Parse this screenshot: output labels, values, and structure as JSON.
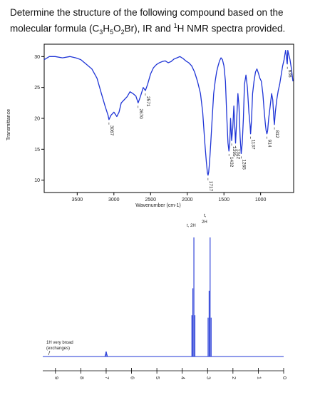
{
  "question": {
    "prefix": "Determine the structure of the following compound based on the molecular formula (C",
    "sub1": "3",
    "mid1": "H",
    "sub2": "5",
    "mid2": "O",
    "sub3": "2",
    "mid3": "Br), IR and ",
    "sup1": "1",
    "suffix": "H NMR spectra provided."
  },
  "colors": {
    "spectrum": "#1f35d6",
    "axis": "#000000",
    "text": "#222222"
  },
  "chart_data": [
    {
      "type": "line",
      "xlabel": "Wavenumber (cm-1)",
      "ylabel": "Transmittance",
      "xlim": [
        3950,
        550
      ],
      "ylim": [
        8,
        32
      ],
      "x_ticks": [
        3500,
        3000,
        2500,
        2000,
        1500,
        1000
      ],
      "y_ticks": [
        10,
        15,
        20,
        25,
        30
      ],
      "peak_labels": [
        {
          "x": 3067,
          "label": "3067"
        },
        {
          "x": 2670,
          "label": "2670"
        },
        {
          "x": 2571,
          "label": "2571"
        },
        {
          "x": 1717,
          "label": "1717"
        },
        {
          "x": 1432,
          "label": "1432"
        },
        {
          "x": 1395,
          "label": "1395"
        },
        {
          "x": 1342,
          "label": "1342"
        },
        {
          "x": 1265,
          "label": "1265"
        },
        {
          "x": 1137,
          "label": "1137"
        },
        {
          "x": 914,
          "label": "914"
        },
        {
          "x": 812,
          "label": "812"
        },
        {
          "x": 636,
          "label": "636"
        }
      ],
      "series": [
        {
          "x": [
            3950,
            3880,
            3800,
            3700,
            3600,
            3520,
            3450,
            3380,
            3300,
            3230,
            3170,
            3120,
            3080,
            3067,
            3040,
            3000,
            2960,
            2930,
            2900,
            2860,
            2820,
            2780,
            2740,
            2700,
            2670,
            2640,
            2600,
            2571,
            2540,
            2500,
            2460,
            2420,
            2380,
            2340,
            2300,
            2260,
            2220,
            2180,
            2140,
            2100,
            2060,
            2020,
            1980,
            1940,
            1900,
            1860,
            1820,
            1790,
            1760,
            1740,
            1725,
            1717,
            1708,
            1695,
            1680,
            1660,
            1640,
            1620,
            1600,
            1580,
            1560,
            1540,
            1520,
            1500,
            1480,
            1460,
            1445,
            1432,
            1420,
            1410,
            1395,
            1380,
            1365,
            1342,
            1325,
            1310,
            1295,
            1280,
            1265,
            1250,
            1235,
            1220,
            1200,
            1180,
            1160,
            1145,
            1137,
            1125,
            1110,
            1090,
            1070,
            1050,
            1030,
            1010,
            990,
            970,
            950,
            935,
            925,
            914,
            905,
            890,
            870,
            850,
            835,
            820,
            812,
            800,
            780,
            760,
            740,
            720,
            700,
            680,
            660,
            650,
            640,
            636,
            630,
            620,
            600,
            580,
            560
          ],
          "y": [
            29.5,
            30,
            30,
            29.8,
            30,
            29.8,
            29.5,
            28.8,
            28,
            26.5,
            24,
            22,
            20.5,
            19.8,
            20.5,
            21,
            20.3,
            21,
            22.5,
            23,
            23.5,
            24.3,
            24,
            23.6,
            22.5,
            23.5,
            25,
            24.5,
            25.5,
            27.2,
            28.2,
            28.7,
            29,
            29.2,
            29.3,
            29,
            29.2,
            29.6,
            29.8,
            30,
            29.7,
            29.3,
            29,
            28.5,
            27.5,
            26,
            24,
            21,
            16,
            13,
            11.2,
            10.8,
            11.3,
            13,
            16,
            20,
            24,
            26,
            27.5,
            28.5,
            29.3,
            29.8,
            29.5,
            28.5,
            26,
            20,
            16,
            14.7,
            16,
            20,
            16.4,
            18.5,
            22,
            16,
            20,
            24,
            22,
            17,
            14.3,
            16,
            20,
            25.5,
            27,
            25,
            21,
            19,
            17.5,
            19.5,
            24,
            26,
            27.5,
            28,
            27.3,
            26.5,
            26,
            24,
            21,
            19,
            18,
            17.5,
            18,
            20,
            22,
            24,
            23,
            20,
            19,
            21,
            23,
            24.5,
            25.5,
            27,
            28.5,
            29.5,
            31,
            30.2,
            29,
            28.8,
            31,
            30.5,
            29.5,
            28,
            26
          ]
        }
      ]
    },
    {
      "type": "line",
      "xlim": [
        9.5,
        0
      ],
      "x_ticks": [
        9,
        8,
        7,
        6,
        5,
        4,
        3,
        2,
        1,
        0
      ],
      "annotations": [
        {
          "label": "1H very broad",
          "x": 9.2
        },
        {
          "label": "(exchanges)",
          "x": 9.2
        },
        {
          "label": "t, 2H",
          "x": 3.55
        },
        {
          "label": "t,",
          "x": 2.95
        },
        {
          "label": "2H",
          "x": 2.95
        }
      ],
      "peaks": [
        {
          "x": 7.0,
          "height": 0.02
        },
        {
          "x": 3.62,
          "height": 0.34
        },
        {
          "x": 3.58,
          "height": 0.58
        },
        {
          "x": 3.54,
          "height": 1.0
        },
        {
          "x": 3.5,
          "height": 0.34
        },
        {
          "x": 2.98,
          "height": 0.32
        },
        {
          "x": 2.94,
          "height": 0.56
        },
        {
          "x": 2.9,
          "height": 1.0
        },
        {
          "x": 2.86,
          "height": 0.32
        }
      ]
    }
  ]
}
